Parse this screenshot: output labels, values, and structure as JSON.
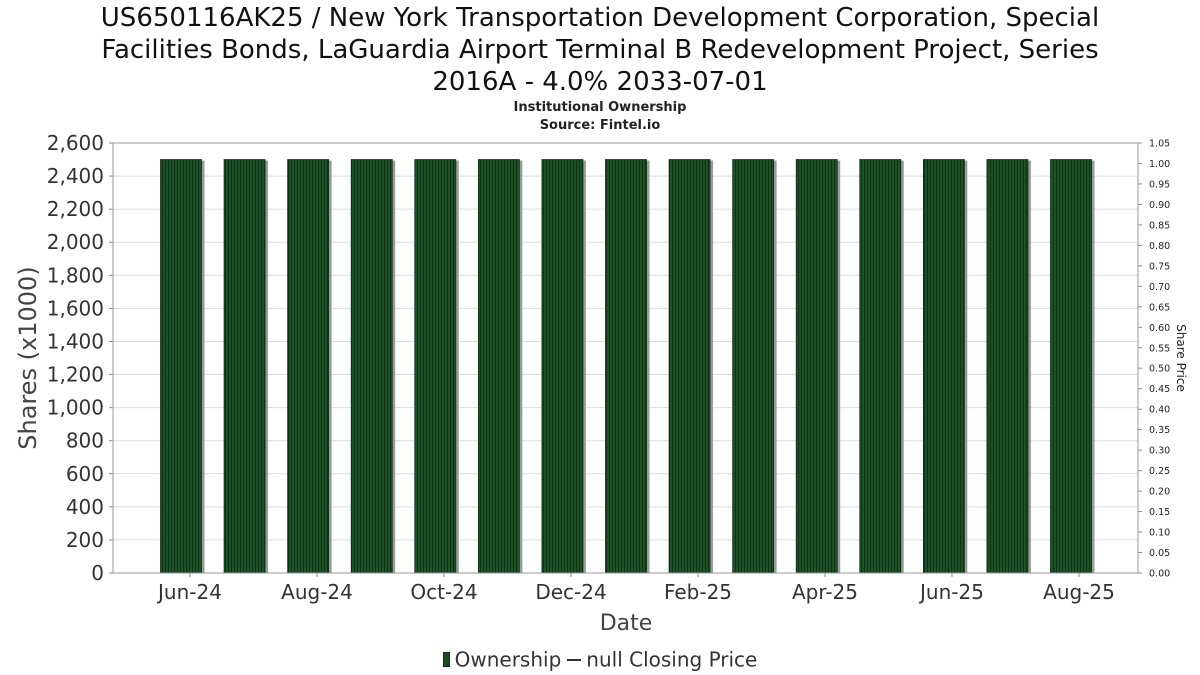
{
  "chart_data": {
    "type": "bar",
    "title": "US650116AK25 / New York Transportation Development Corporation, Special Facilities Bonds, LaGuardia Airport Terminal B Redevelopment Project, Series 2016A - 4.0% 2033-07-01",
    "title_lines": [
      "US650116AK25 / New York Transportation Development Corporation, Special",
      "Facilities Bonds, LaGuardia Airport Terminal B Redevelopment Project, Series",
      "2016A - 4.0% 2033-07-01"
    ],
    "subtitle_lines": [
      "Institutional Ownership",
      "Source: Fintel.io"
    ],
    "xlabel": "Date",
    "ylabel": "Shares (x1000)",
    "y2label": "Share Price",
    "x_tick_labels": [
      "Jun-24",
      "Aug-24",
      "Oct-24",
      "Dec-24",
      "Feb-25",
      "Apr-25",
      "Jun-25",
      "Aug-25"
    ],
    "ylim": [
      0,
      2600
    ],
    "y_ticks": [
      0,
      200,
      400,
      600,
      800,
      1000,
      1200,
      1400,
      1600,
      1800,
      2000,
      2200,
      2400,
      2600
    ],
    "y2lim": [
      0.0,
      1.05
    ],
    "y2_ticks": [
      "0.00",
      "0.05",
      "0.10",
      "0.15",
      "0.20",
      "0.25",
      "0.30",
      "0.35",
      "0.40",
      "0.45",
      "0.50",
      "0.55",
      "0.60",
      "0.65",
      "0.70",
      "0.75",
      "0.80",
      "0.85",
      "0.90",
      "0.95",
      "1.00",
      "1.05"
    ],
    "series": [
      {
        "name": "Ownership",
        "color": "#1a4d26",
        "x": [
          "2024-05-31",
          "2024-06-30",
          "2024-07-31",
          "2024-08-31",
          "2024-09-30",
          "2024-10-31",
          "2024-11-30",
          "2024-12-31",
          "2025-01-31",
          "2025-02-28",
          "2025-03-31",
          "2025-04-30",
          "2025-05-31",
          "2025-06-30",
          "2025-07-31"
        ],
        "values": [
          2500,
          2500,
          2500,
          2500,
          2500,
          2500,
          2500,
          2500,
          2500,
          2500,
          2500,
          2500,
          2500,
          2500,
          2500
        ]
      },
      {
        "name": "null Closing Price",
        "color": "#333333",
        "values": []
      }
    ],
    "grid": true,
    "legend_position": "bottom"
  },
  "legend": {
    "ownership_label": "Ownership",
    "price_label": "null Closing Price"
  }
}
